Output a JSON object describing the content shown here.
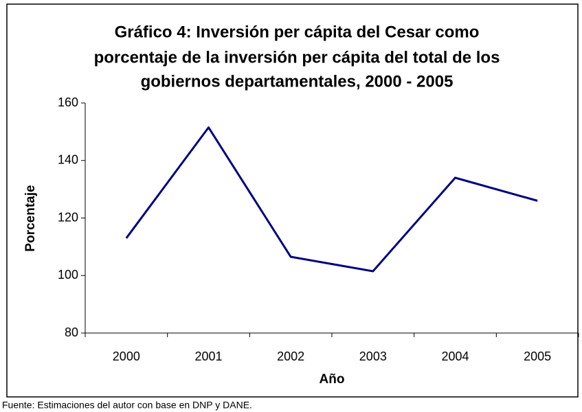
{
  "chart_data": {
    "type": "line",
    "title": [
      "Gráfico 4: Inversión per cápita del Cesar como",
      "porcentaje de la inversión per cápita del total de los",
      "gobiernos departamentales, 2000 - 2005"
    ],
    "x_label": "Año",
    "y_label": "Porcentaje",
    "categories": [
      "2000",
      "2001",
      "2002",
      "2003",
      "2004",
      "2005"
    ],
    "series": [
      {
        "name": "Porcentaje",
        "color": "#000080",
        "values": [
          113,
          151.5,
          106.5,
          101.5,
          134,
          126
        ]
      }
    ],
    "ylim": [
      80,
      160
    ],
    "yticks": [
      80,
      100,
      120,
      140,
      160
    ],
    "grid": false,
    "source": "Fuente: Estimaciones del autor con base en DNP y DANE."
  }
}
